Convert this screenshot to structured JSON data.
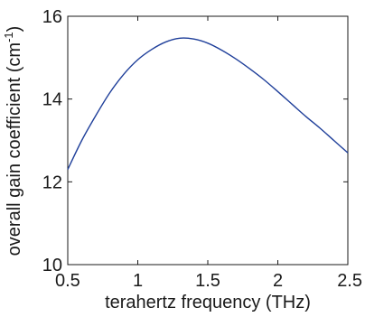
{
  "chart_data": {
    "type": "line",
    "xlabel": "terahertz frequency (THz)",
    "ylabel": {
      "main": "overall gain coefficient (cm",
      "superscript": "-1",
      "close": ")"
    },
    "xlim": [
      0.5,
      2.5
    ],
    "ylim": [
      10,
      16
    ],
    "xticks": [
      "0.5",
      "1",
      "1.5",
      "2",
      "2.5"
    ],
    "yticks": [
      "10",
      "12",
      "14",
      "16"
    ],
    "grid": false,
    "colors": {
      "line": "#1f3f9a",
      "axis": "#1a1a1a"
    },
    "series": [
      {
        "x": [
          0.5,
          0.6,
          0.7,
          0.8,
          0.9,
          1.0,
          1.1,
          1.2,
          1.3,
          1.4,
          1.5,
          1.6,
          1.7,
          1.8,
          1.9,
          2.0,
          2.1,
          2.2,
          2.3,
          2.4,
          2.5
        ],
        "y": [
          12.3,
          13.0,
          13.6,
          14.15,
          14.6,
          14.95,
          15.2,
          15.38,
          15.47,
          15.45,
          15.35,
          15.18,
          14.97,
          14.73,
          14.47,
          14.18,
          13.88,
          13.58,
          13.3,
          13.0,
          12.7
        ]
      }
    ]
  }
}
